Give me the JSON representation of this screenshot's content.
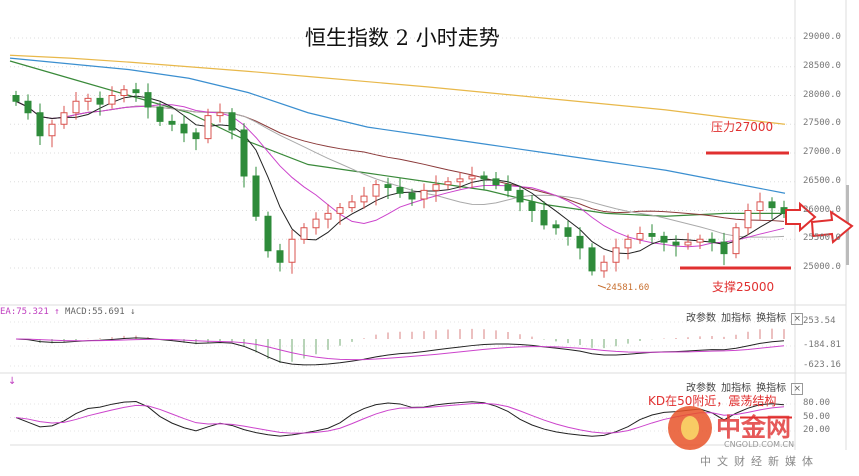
{
  "title": "恒生指数 2 小时走势",
  "annotations": {
    "resistance_label": "压力27000",
    "resistance_value": 27000,
    "support_label": "支撑25000",
    "support_value": 25000,
    "low_label": "24581.60",
    "kd_note": "KD在50附近，震荡结构"
  },
  "macd_header": {
    "dea": "EA:75.321",
    "dea_arrow": "↑",
    "macd": "MACD:55.691",
    "macd_arrow": "↓"
  },
  "kd_header": {
    "arrow": "↓"
  },
  "panel_buttons": {
    "modify": "改参数",
    "add": "加指标",
    "switch": "换指标",
    "close": "×"
  },
  "logo": {
    "name": "中金网",
    "domain": "CNGOLD.COM.CN",
    "slogan": "中文财经新媒体"
  },
  "colors": {
    "up": "#d9534f",
    "down": "#2e8b3a",
    "ma_short": "#222222",
    "ma_magenta": "#cc44cc",
    "ma_gray": "#aaaaaa",
    "ma_brown": "#8b3a3a",
    "ma_green": "#3a8a3a",
    "ma_blue": "#3b8fd0",
    "ma_yellow": "#e8b84a",
    "annotation": "#e03030"
  },
  "chart_data": [
    {
      "type": "candlestick",
      "title": "恒生指数 2 小时走势",
      "y_ticks": [
        "29000.0",
        "28500.0",
        "28000.0",
        "27500.0",
        "27000.0",
        "26500.0",
        "26000.0",
        "25500.0",
        "25000.0"
      ],
      "ylim": [
        24700,
        29300
      ],
      "closes": [
        27900,
        27700,
        27300,
        27500,
        27700,
        27900,
        27950,
        27850,
        28000,
        28100,
        28050,
        27800,
        27550,
        27500,
        27350,
        27250,
        27650,
        27700,
        27400,
        26600,
        25900,
        25300,
        25100,
        25500,
        25700,
        25850,
        25950,
        26050,
        26150,
        26250,
        26450,
        26400,
        26300,
        26200,
        26350,
        26450,
        26500,
        26550,
        26600,
        26550,
        26450,
        26350,
        26150,
        26000,
        25750,
        25700,
        25550,
        25350,
        24950,
        25100,
        25350,
        25500,
        25600,
        25550,
        25450,
        25400,
        25450,
        25500,
        25450,
        25250,
        25700,
        26000,
        26150,
        26050,
        25950
      ],
      "long_ma_series": [
        {
          "color": "#e8b84a",
          "values": [
            28700,
            28650,
            28580,
            28500,
            28420,
            28330,
            28240,
            28150,
            28050,
            27950,
            27850,
            27750,
            27620,
            27500
          ]
        },
        {
          "color": "#3b8fd0",
          "values": [
            28650,
            28550,
            28450,
            28300,
            28050,
            27700,
            27450,
            27300,
            27150,
            27000,
            26850,
            26700,
            26500,
            26300
          ]
        },
        {
          "color": "#3a8a3a",
          "values": [
            28600,
            28300,
            28000,
            27700,
            27200,
            26800,
            26650,
            26500,
            26350,
            26100,
            25950,
            25900,
            25950,
            25950
          ]
        }
      ]
    },
    {
      "type": "line",
      "indicator": "MACD",
      "y_ticks": [
        "253.54",
        "-184.81",
        "-623.16"
      ],
      "ylim": [
        -623.16,
        253.54
      ]
    },
    {
      "type": "line",
      "indicator": "KD",
      "y_ticks": [
        "80.00",
        "50.00",
        "20.00"
      ],
      "ylim": [
        0,
        100
      ]
    }
  ]
}
